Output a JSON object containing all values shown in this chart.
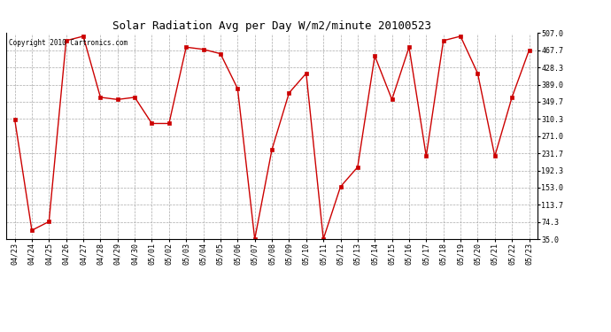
{
  "title": "Solar Radiation Avg per Day W/m2/minute 20100523",
  "copyright": "Copyright 2010 Cartronics.com",
  "labels": [
    "04/23",
    "04/24",
    "04/25",
    "04/26",
    "04/27",
    "04/28",
    "04/29",
    "04/30",
    "05/01",
    "05/02",
    "05/03",
    "05/04",
    "05/05",
    "05/06",
    "05/07",
    "05/08",
    "05/09",
    "05/10",
    "05/11",
    "05/12",
    "05/13",
    "05/14",
    "05/15",
    "05/16",
    "05/17",
    "05/18",
    "05/19",
    "05/20",
    "05/21",
    "05/22",
    "05/23"
  ],
  "values": [
    310,
    55,
    75,
    490,
    500,
    360,
    355,
    360,
    300,
    300,
    475,
    470,
    460,
    380,
    35,
    240,
    370,
    415,
    35,
    155,
    200,
    455,
    355,
    475,
    225,
    490,
    500,
    415,
    225,
    360,
    468
  ],
  "line_color": "#cc0000",
  "marker_color": "#cc0000",
  "bg_color": "#ffffff",
  "grid_color": "#aaaaaa",
  "y_ticks": [
    35.0,
    74.3,
    113.7,
    153.0,
    192.3,
    231.7,
    271.0,
    310.3,
    349.7,
    389.0,
    428.3,
    467.7,
    507.0
  ],
  "ylim": [
    35.0,
    507.0
  ],
  "title_fontsize": 9,
  "tick_fontsize": 6,
  "copyright_fontsize": 5.5
}
